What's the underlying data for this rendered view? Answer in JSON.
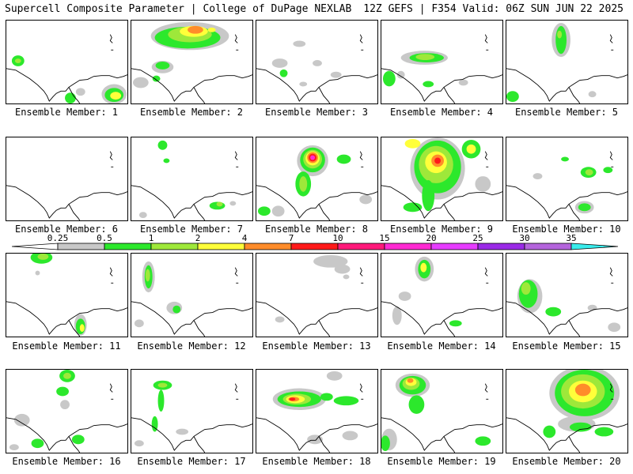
{
  "header": {
    "title": "Supercell Composite Parameter | College of DuPage NEXLAB",
    "run_info": "12Z GEFS | F354 Valid: 06Z SUN JUN 22 2025"
  },
  "legend": {
    "ticks": [
      "0.25",
      "0.5",
      "1",
      "2",
      "4",
      "7",
      "10",
      "15",
      "20",
      "25",
      "30",
      "35"
    ],
    "colors": [
      "#c8c8c8",
      "#2ce82c",
      "#9ee83a",
      "#ffff3a",
      "#ff8c2a",
      "#ff1a1a",
      "#ff1a7a",
      "#ff2ad2",
      "#e63cff",
      "#9a2ae6",
      "#b464dc",
      "#38ecec"
    ]
  },
  "panels": [
    {
      "label": "Ensemble Member: 1"
    },
    {
      "label": "Ensemble Member: 2"
    },
    {
      "label": "Ensemble Member: 3"
    },
    {
      "label": "Ensemble Member: 4"
    },
    {
      "label": "Ensemble Member: 5"
    },
    {
      "label": "Ensemble Member: 6"
    },
    {
      "label": "Ensemble Member: 7"
    },
    {
      "label": "Ensemble Member: 8"
    },
    {
      "label": "Ensemble Member: 9"
    },
    {
      "label": "Ensemble Member: 10"
    },
    {
      "label": "Ensemble Member: 11"
    },
    {
      "label": "Ensemble Member: 12"
    },
    {
      "label": "Ensemble Member: 13"
    },
    {
      "label": "Ensemble Member: 14"
    },
    {
      "label": "Ensemble Member: 15"
    },
    {
      "label": "Ensemble Member: 16"
    },
    {
      "label": "Ensemble Member: 17"
    },
    {
      "label": "Ensemble Member: 18"
    },
    {
      "label": "Ensemble Member: 19"
    },
    {
      "label": "Ensemble Member: 20"
    }
  ]
}
